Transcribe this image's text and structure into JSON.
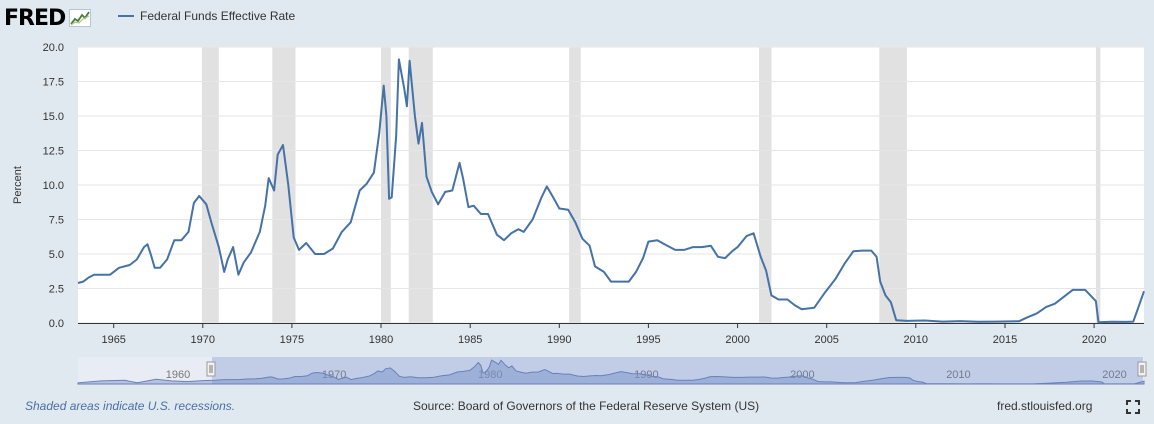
{
  "header": {
    "logo": "FRED",
    "legend_label": "Federal Funds Effective Rate"
  },
  "footer": {
    "note": "Shaded areas indicate U.S. recessions.",
    "source": "Source: Board of Governors of the Federal Reserve System (US)",
    "site": "fred.stlouisfed.org"
  },
  "icons": {
    "logo_graph": "line-chart-icon",
    "expand": "fullscreen-icon"
  },
  "colors": {
    "series": "#4572a7",
    "background": "#e1e9f0",
    "plot": "#ffffff",
    "recession": "#e1e1e1",
    "navigator": "#c3cde6",
    "footer_note": "#4a6fa5"
  },
  "chart_data": {
    "type": "line",
    "title": "",
    "xlabel": "",
    "ylabel": "Percent",
    "xlim": [
      1963.0,
      2022.8
    ],
    "ylim": [
      0,
      20
    ],
    "y_ticks": [
      "0.0",
      "2.5",
      "5.0",
      "7.5",
      "10.0",
      "12.5",
      "15.0",
      "17.5",
      "20.0"
    ],
    "x_ticks": [
      "1965",
      "1970",
      "1975",
      "1980",
      "1985",
      "1990",
      "1995",
      "2000",
      "2005",
      "2010",
      "2015",
      "2020"
    ],
    "grid": true,
    "legend": "top-left",
    "recessions": [
      [
        1969.95,
        1970.9
      ],
      [
        1973.9,
        1975.2
      ],
      [
        1980.0,
        1980.55
      ],
      [
        1981.55,
        1982.9
      ],
      [
        1990.55,
        1991.2
      ],
      [
        2001.2,
        2001.9
      ],
      [
        2007.95,
        2009.5
      ],
      [
        2020.1,
        2020.35
      ]
    ],
    "series": [
      {
        "name": "Federal Funds Effective Rate",
        "x": [
          1963.0,
          1963.3,
          1963.6,
          1963.9,
          1964.3,
          1964.8,
          1965.3,
          1965.9,
          1966.3,
          1966.7,
          1966.9,
          1967.1,
          1967.3,
          1967.6,
          1968.0,
          1968.4,
          1968.8,
          1969.2,
          1969.5,
          1969.8,
          1970.2,
          1970.5,
          1970.9,
          1971.2,
          1971.4,
          1971.7,
          1972.0,
          1972.3,
          1972.7,
          1973.2,
          1973.5,
          1973.7,
          1974.0,
          1974.2,
          1974.5,
          1974.8,
          1975.1,
          1975.4,
          1975.8,
          1976.3,
          1976.8,
          1977.3,
          1977.8,
          1978.3,
          1978.8,
          1979.2,
          1979.6,
          1979.9,
          1980.15,
          1980.3,
          1980.45,
          1980.6,
          1980.85,
          1981.0,
          1981.3,
          1981.45,
          1981.6,
          1981.9,
          1982.1,
          1982.3,
          1982.55,
          1982.85,
          1983.2,
          1983.6,
          1984.0,
          1984.4,
          1984.6,
          1984.9,
          1985.2,
          1985.6,
          1986.0,
          1986.5,
          1986.9,
          1987.3,
          1987.7,
          1988.0,
          1988.5,
          1989.0,
          1989.3,
          1989.7,
          1990.0,
          1990.5,
          1990.9,
          1991.3,
          1991.7,
          1992.0,
          1992.5,
          1992.9,
          1993.5,
          1993.9,
          1994.3,
          1994.7,
          1995.0,
          1995.5,
          1995.9,
          1996.5,
          1997.0,
          1997.5,
          1998.0,
          1998.5,
          1998.9,
          1999.3,
          1999.7,
          2000.0,
          2000.5,
          2000.9,
          2001.3,
          2001.6,
          2001.9,
          2002.3,
          2002.8,
          2003.2,
          2003.6,
          2004.3,
          2004.9,
          2005.5,
          2006.0,
          2006.5,
          2007.0,
          2007.5,
          2007.8,
          2008.0,
          2008.3,
          2008.6,
          2008.9,
          2009.5,
          2010.5,
          2011.5,
          2012.5,
          2013.5,
          2014.5,
          2015.8,
          2016.2,
          2016.8,
          2017.3,
          2017.8,
          2018.3,
          2018.8,
          2019.0,
          2019.5,
          2019.8,
          2020.1,
          2020.25,
          2021.0,
          2021.8,
          2022.2,
          2022.5,
          2022.8
        ],
        "values": [
          2.9,
          3.0,
          3.3,
          3.5,
          3.5,
          3.5,
          4.0,
          4.2,
          4.6,
          5.5,
          5.7,
          4.9,
          4.0,
          4.0,
          4.6,
          6.0,
          6.0,
          6.6,
          8.7,
          9.2,
          8.6,
          7.2,
          5.5,
          3.7,
          4.6,
          5.5,
          3.5,
          4.4,
          5.1,
          6.6,
          8.5,
          10.5,
          9.6,
          12.2,
          12.9,
          10.0,
          6.2,
          5.3,
          5.8,
          5.0,
          5.0,
          5.4,
          6.6,
          7.3,
          9.6,
          10.1,
          10.9,
          13.8,
          17.2,
          15.0,
          9.0,
          9.1,
          13.6,
          19.1,
          17.0,
          15.7,
          19.0,
          15.0,
          13.0,
          14.5,
          10.6,
          9.5,
          8.6,
          9.5,
          9.6,
          11.6,
          10.5,
          8.4,
          8.5,
          7.9,
          7.9,
          6.4,
          6.0,
          6.5,
          6.8,
          6.6,
          7.5,
          9.1,
          9.9,
          9.0,
          8.3,
          8.2,
          7.3,
          6.1,
          5.6,
          4.1,
          3.7,
          3.0,
          3.0,
          3.0,
          3.7,
          4.7,
          5.9,
          6.0,
          5.7,
          5.3,
          5.3,
          5.5,
          5.5,
          5.6,
          4.8,
          4.7,
          5.2,
          5.5,
          6.3,
          6.5,
          4.8,
          3.8,
          2.0,
          1.7,
          1.7,
          1.3,
          1.0,
          1.1,
          2.2,
          3.2,
          4.3,
          5.2,
          5.25,
          5.25,
          4.8,
          3.0,
          2.0,
          1.5,
          0.2,
          0.15,
          0.18,
          0.1,
          0.14,
          0.09,
          0.1,
          0.13,
          0.38,
          0.7,
          1.15,
          1.4,
          1.9,
          2.4,
          2.4,
          2.4,
          2.0,
          1.58,
          0.05,
          0.09,
          0.08,
          0.1,
          1.2,
          2.3
        ]
      }
    ]
  },
  "navigator": {
    "labels": [
      "1960",
      "1970",
      "1980",
      "1990",
      "2000",
      "2010",
      "2020"
    ]
  }
}
